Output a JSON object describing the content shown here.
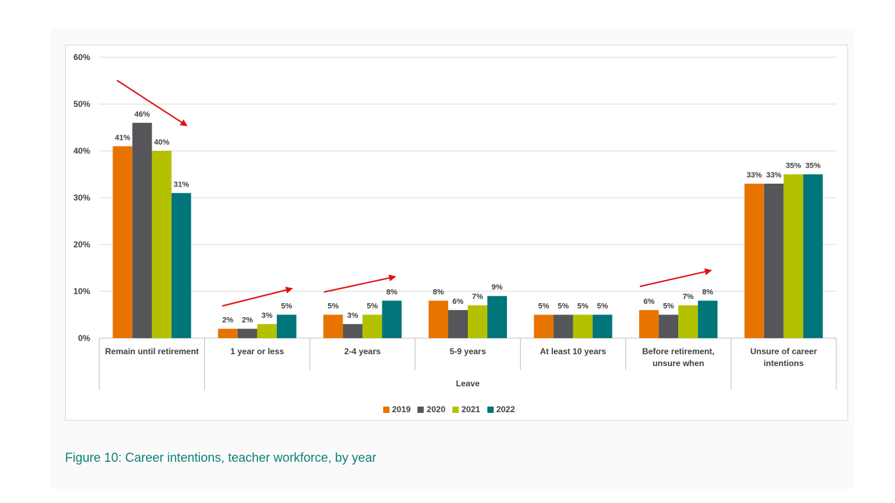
{
  "caption": "Figure 10: Career intentions, teacher workforce, by year",
  "colors": {
    "2019": "#e87400",
    "2020": "#545659",
    "2021": "#b3c100",
    "2022": "#00757a",
    "arrow": "#e01010",
    "grid": "#d9d9d9",
    "axis_text": "#404040"
  },
  "chart_data": {
    "type": "bar",
    "title": "",
    "xlabel": "",
    "ylabel": "",
    "ylim": [
      0,
      60
    ],
    "yticks": [
      "0%",
      "10%",
      "20%",
      "30%",
      "40%",
      "50%",
      "60%"
    ],
    "categories": [
      "Remain until retirement",
      "1 year or less",
      "2-4 years",
      "5-9 years",
      "At least 10 years",
      "Before retirement, unsure when",
      "Unsure of career intentions"
    ],
    "category_groups": [
      {
        "label": "",
        "span": [
          0,
          0
        ]
      },
      {
        "label": "Leave",
        "span": [
          1,
          5
        ]
      },
      {
        "label": "",
        "span": [
          6,
          6
        ]
      }
    ],
    "series": [
      {
        "name": "2019",
        "values": [
          41,
          2,
          5,
          8,
          5,
          6,
          33
        ],
        "labels": [
          "41%",
          "2%",
          "5%",
          "8%",
          "5%",
          "6%",
          "33%"
        ]
      },
      {
        "name": "2020",
        "values": [
          46,
          2,
          3,
          6,
          5,
          5,
          33
        ],
        "labels": [
          "46%",
          "2%",
          "3%",
          "6%",
          "5%",
          "5%",
          "33%"
        ]
      },
      {
        "name": "2021",
        "values": [
          40,
          3,
          5,
          7,
          5,
          7,
          35
        ],
        "labels": [
          "40%",
          "3%",
          "5%",
          "7%",
          "5%",
          "7%",
          "35%"
        ]
      },
      {
        "name": "2022",
        "values": [
          31,
          5,
          8,
          9,
          5,
          8,
          35
        ],
        "labels": [
          "31%",
          "5%",
          "8%",
          "9%",
          "5%",
          "8%",
          "35%"
        ]
      }
    ],
    "legend": {
      "position": "bottom",
      "entries": [
        "2019",
        "2020",
        "2021",
        "2022"
      ]
    },
    "annotations": [
      {
        "type": "trend-arrow",
        "category": "Remain until retirement",
        "direction": "down"
      },
      {
        "type": "trend-arrow",
        "category": "1 year or less",
        "direction": "up"
      },
      {
        "type": "trend-arrow",
        "category": "2-4 years",
        "direction": "up"
      },
      {
        "type": "trend-arrow",
        "category": "Before retirement, unsure when",
        "direction": "up"
      }
    ]
  }
}
